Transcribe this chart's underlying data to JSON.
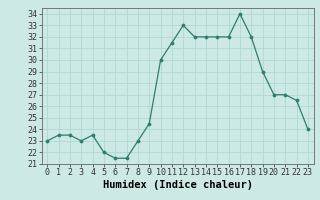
{
  "x": [
    0,
    1,
    2,
    3,
    4,
    5,
    6,
    7,
    8,
    9,
    10,
    11,
    12,
    13,
    14,
    15,
    16,
    17,
    18,
    19,
    20,
    21,
    22,
    23
  ],
  "y": [
    23,
    23.5,
    23.5,
    23,
    23.5,
    22,
    21.5,
    21.5,
    23,
    24.5,
    30,
    31.5,
    33,
    32,
    32,
    32,
    32,
    34,
    32,
    29,
    27,
    27,
    26.5,
    24
  ],
  "line_color": "#2e7d6e",
  "marker_color": "#2e7d6e",
  "bg_color": "#cce9e5",
  "grid_color": "#b0d8d2",
  "xlabel": "Humidex (Indice chaleur)",
  "xlim": [
    -0.5,
    23.5
  ],
  "ylim": [
    21,
    34.5
  ],
  "yticks": [
    21,
    22,
    23,
    24,
    25,
    26,
    27,
    28,
    29,
    30,
    31,
    32,
    33,
    34
  ],
  "xticks": [
    0,
    1,
    2,
    3,
    4,
    5,
    6,
    7,
    8,
    9,
    10,
    11,
    12,
    13,
    14,
    15,
    16,
    17,
    18,
    19,
    20,
    21,
    22,
    23
  ],
  "tick_fontsize": 6,
  "xlabel_fontsize": 7.5
}
